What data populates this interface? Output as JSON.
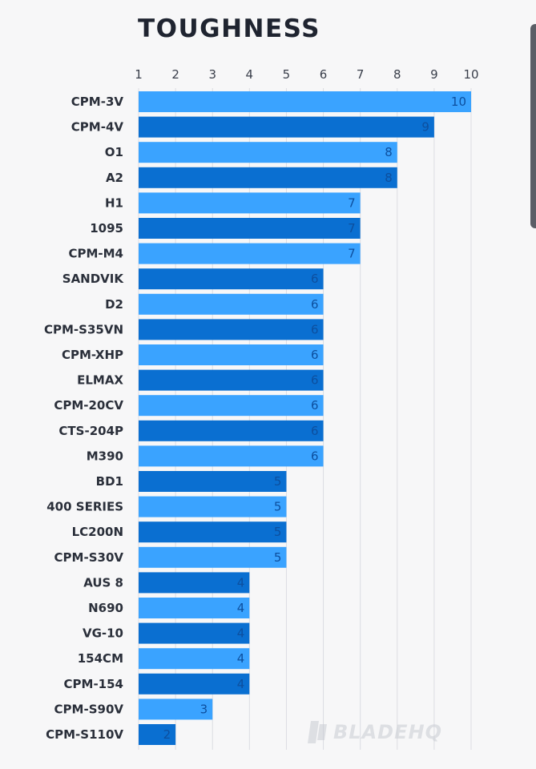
{
  "chart_data": {
    "type": "bar",
    "orientation": "horizontal",
    "title": "TOUGHNESS",
    "xlim": [
      1,
      10
    ],
    "ticks": [
      "1",
      "2",
      "3",
      "4",
      "5",
      "6",
      "7",
      "8",
      "9",
      "10"
    ],
    "grid": true,
    "categories": [
      "CPM-3V",
      "CPM-4V",
      "O1",
      "A2",
      "H1",
      "1095",
      "CPM-M4",
      "SANDVIK",
      "D2",
      "CPM-S35VN",
      "CPM-XHP",
      "ELMAX",
      "CPM-20CV",
      "CTS-204P",
      "M390",
      "BD1",
      "400 SERIES",
      "LC200N",
      "CPM-S30V",
      "AUS 8",
      "N690",
      "VG-10",
      "154CM",
      "CPM-154",
      "CPM-S90V",
      "CPM-S110V"
    ],
    "values": [
      10,
      9,
      8,
      8,
      7,
      7,
      7,
      6,
      6,
      6,
      6,
      6,
      6,
      6,
      6,
      5,
      5,
      5,
      5,
      4,
      4,
      4,
      4,
      4,
      3,
      2
    ],
    "colors": {
      "light": "#3aa3ff",
      "dark": "#0a6fd1",
      "label": "#0d4f9e"
    }
  },
  "watermark": {
    "text": "BLADEHQ",
    "icon": "bladehq-logo-icon"
  }
}
